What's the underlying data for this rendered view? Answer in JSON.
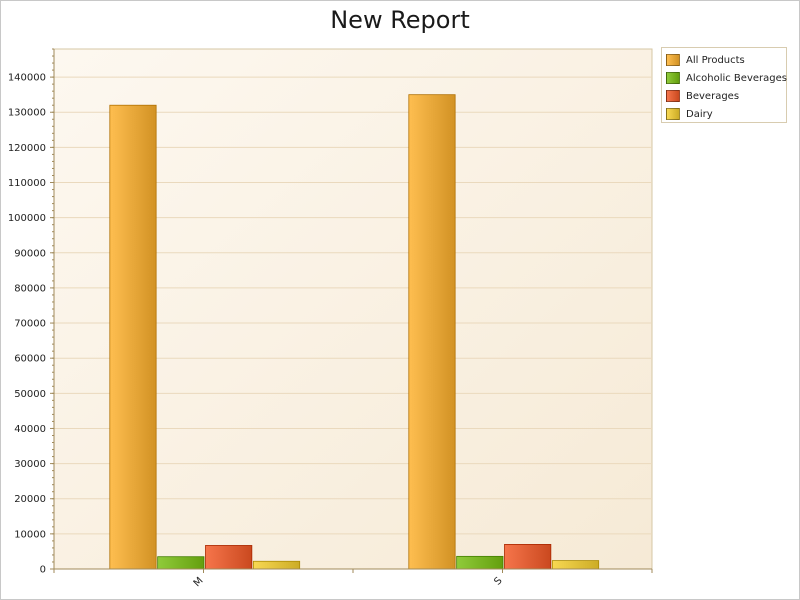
{
  "chart_data": {
    "type": "bar",
    "title": "New Report",
    "categories": [
      "M",
      "S"
    ],
    "series": [
      {
        "name": "All Products",
        "values": [
          132000,
          135000
        ],
        "color": "#e8a83a"
      },
      {
        "name": "Alcoholic Beverages",
        "values": [
          3500,
          3600
        ],
        "color": "#7ab524"
      },
      {
        "name": "Beverages",
        "values": [
          6700,
          7000
        ],
        "color": "#e05f35"
      },
      {
        "name": "Dairy",
        "values": [
          2200,
          2400
        ],
        "color": "#e2c23c"
      }
    ],
    "ylim": [
      0,
      148000
    ],
    "yticks": [
      0,
      10000,
      20000,
      30000,
      40000,
      50000,
      60000,
      70000,
      80000,
      90000,
      100000,
      110000,
      120000,
      130000,
      140000
    ],
    "grid": true,
    "legend_position": "top-right"
  }
}
